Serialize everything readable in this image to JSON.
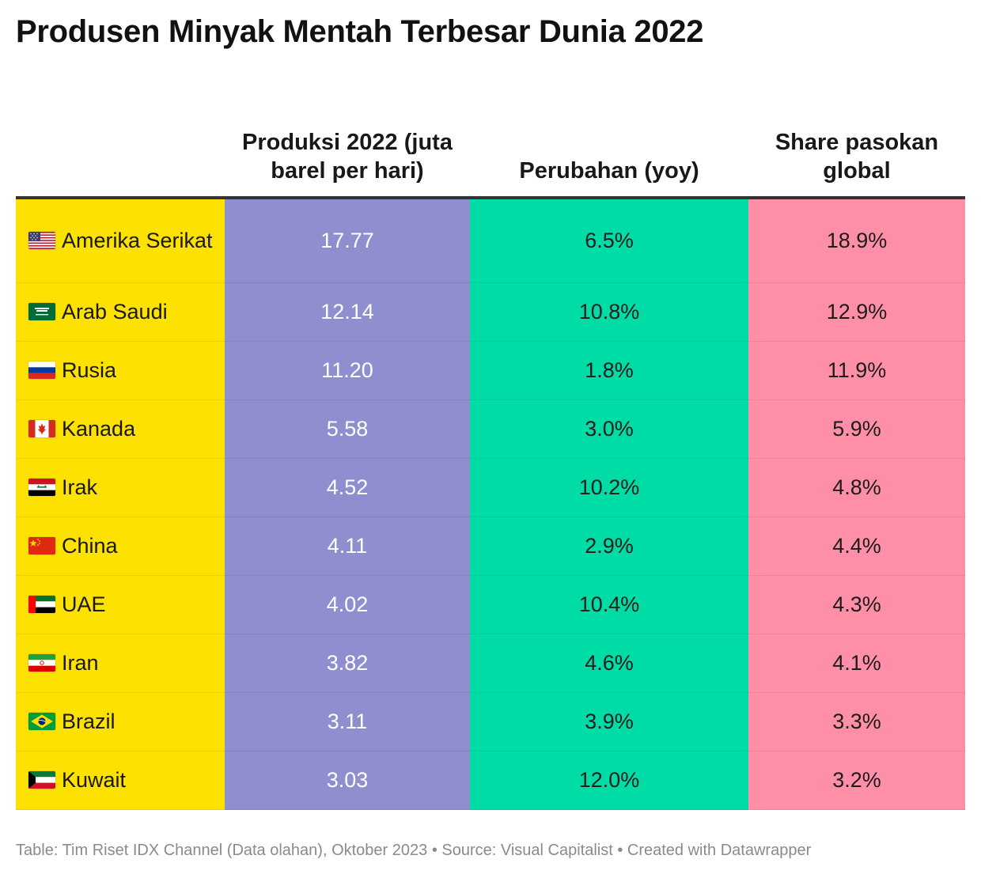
{
  "title": "Produsen Minyak Mentah Terbesar Dunia 2022",
  "chart_data": {
    "type": "table",
    "columns": [
      "",
      "Produksi 2022 (juta barel per hari)",
      "Perubahan (yoy)",
      "Share pasokan global"
    ],
    "column_colors": [
      "#FDE100",
      "#8F8FD0",
      "#00DCA6",
      "#FF8EA7"
    ],
    "rows": [
      {
        "flag": "us-flag-icon",
        "country": "Amerika Serikat",
        "production": "17.77",
        "change": "6.5%",
        "share": "18.9%"
      },
      {
        "flag": "saudi-arabia-flag-icon",
        "country": "Arab Saudi",
        "production": "12.14",
        "change": "10.8%",
        "share": "12.9%"
      },
      {
        "flag": "russia-flag-icon",
        "country": "Rusia",
        "production": "11.20",
        "change": "1.8%",
        "share": "11.9%"
      },
      {
        "flag": "canada-flag-icon",
        "country": "Kanada",
        "production": "5.58",
        "change": "3.0%",
        "share": "5.9%"
      },
      {
        "flag": "iraq-flag-icon",
        "country": "Irak",
        "production": "4.52",
        "change": "10.2%",
        "share": "4.8%"
      },
      {
        "flag": "china-flag-icon",
        "country": "China",
        "production": "4.11",
        "change": "2.9%",
        "share": "4.4%"
      },
      {
        "flag": "uae-flag-icon",
        "country": "UAE",
        "production": "4.02",
        "change": "10.4%",
        "share": "4.3%"
      },
      {
        "flag": "iran-flag-icon",
        "country": "Iran",
        "production": "3.82",
        "change": "4.6%",
        "share": "4.1%"
      },
      {
        "flag": "brazil-flag-icon",
        "country": "Brazil",
        "production": "3.11",
        "change": "3.9%",
        "share": "3.3%"
      },
      {
        "flag": "kuwait-flag-icon",
        "country": "Kuwait",
        "production": "3.03",
        "change": "12.0%",
        "share": "3.2%"
      }
    ]
  },
  "footer": "Table: Tim Riset IDX Channel (Data olahan), Oktober 2023 • Source: Visual Capitalist • Created with Datawrapper"
}
